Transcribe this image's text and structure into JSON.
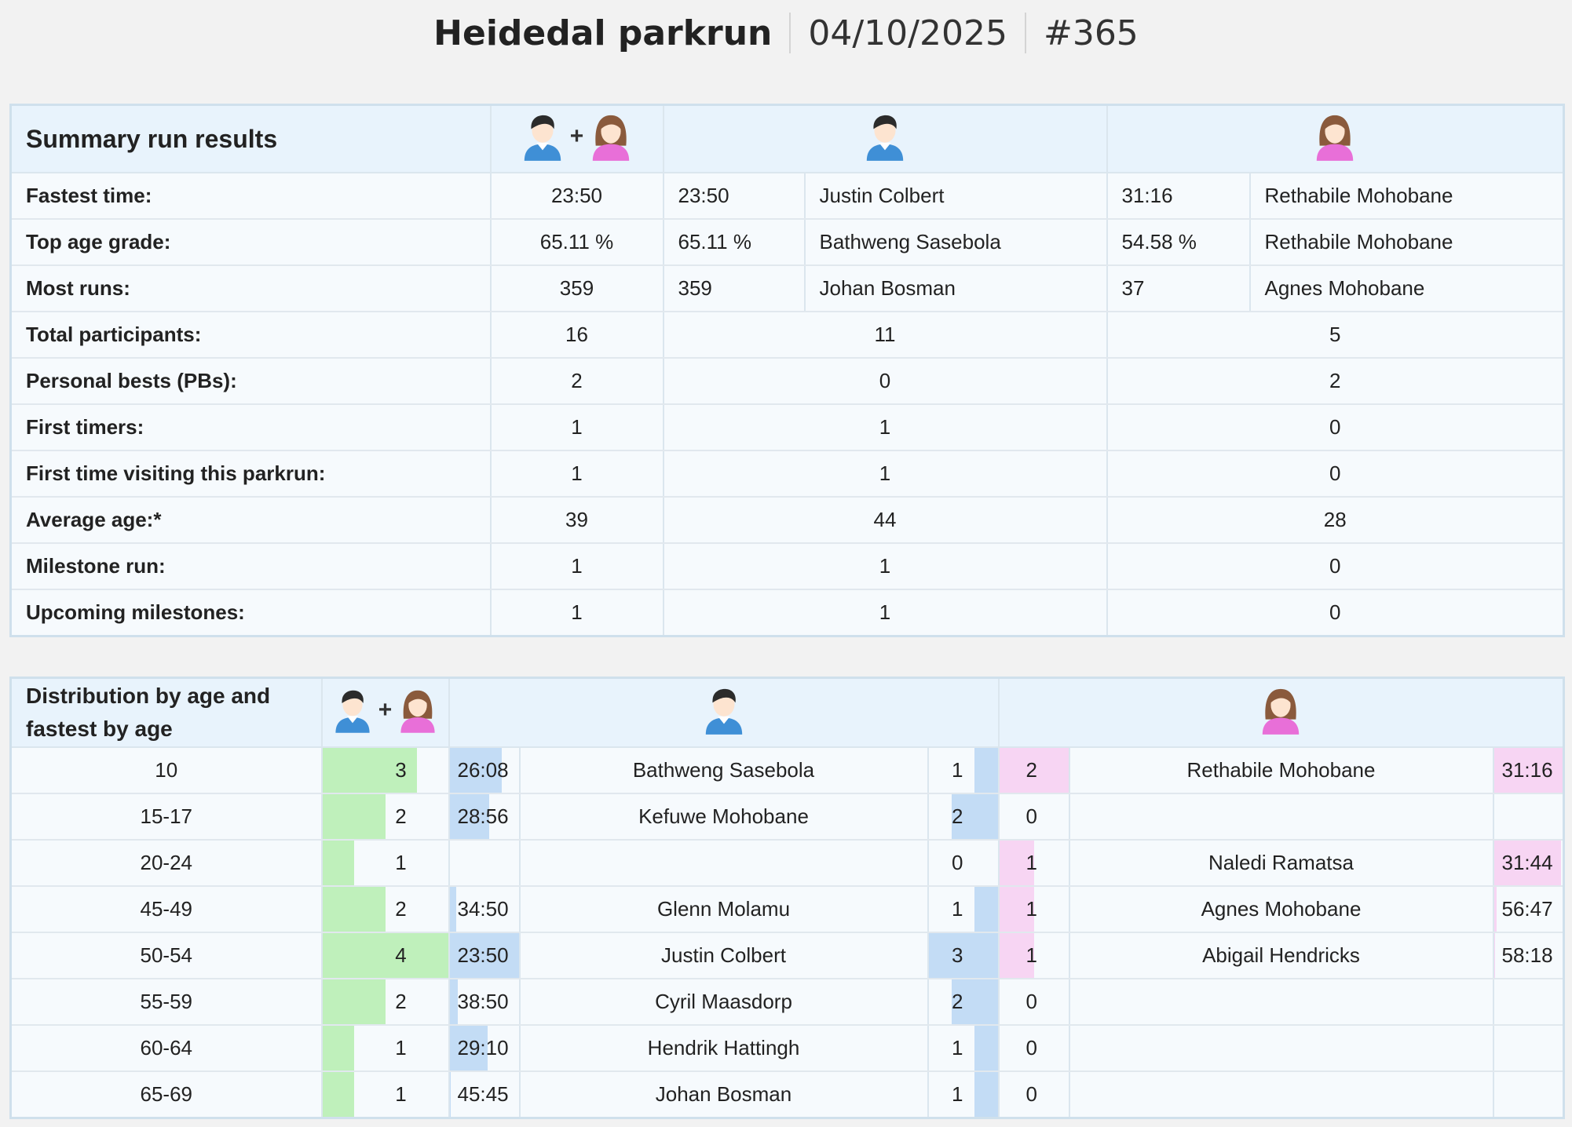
{
  "header": {
    "title": "Heidedal parkrun",
    "date": "04/10/2025",
    "event_number": "#365"
  },
  "icons": {
    "all": "male-female-icon",
    "male": "male-icon",
    "female": "female-icon",
    "plus": "+"
  },
  "colors": {
    "total_bar": "#bff0bb",
    "male_bar": "#c3dcf5",
    "female_bar": "#f7d5f3",
    "header_bg": "#e8f3fc"
  },
  "summary": {
    "title": "Summary run results",
    "rows": [
      {
        "label": "Fastest time:",
        "all": "23:50",
        "male_value": "23:50",
        "male_name": "Justin Colbert",
        "female_value": "31:16",
        "female_name": "Rethabile Mohobane"
      },
      {
        "label": "Top age grade:",
        "all": "65.11 %",
        "male_value": "65.11 %",
        "male_name": "Bathweng Sasebola",
        "female_value": "54.58 %",
        "female_name": "Rethabile Mohobane"
      },
      {
        "label": "Most runs:",
        "all": "359",
        "male_value": "359",
        "male_name": "Johan Bosman",
        "female_value": "37",
        "female_name": "Agnes Mohobane"
      },
      {
        "label": "Total participants:",
        "all": "16",
        "male": "11",
        "female": "5"
      },
      {
        "label": "Personal bests (PBs):",
        "all": "2",
        "male": "0",
        "female": "2"
      },
      {
        "label": "First timers:",
        "all": "1",
        "male": "1",
        "female": "0"
      },
      {
        "label": "First time visiting this parkrun:",
        "all": "1",
        "male": "1",
        "female": "0"
      },
      {
        "label": "Average age:*",
        "all": "39",
        "male": "44",
        "female": "28"
      },
      {
        "label": "Milestone run:",
        "all": "1",
        "male": "1",
        "female": "0"
      },
      {
        "label": "Upcoming milestones:",
        "all": "1",
        "male": "1",
        "female": "0"
      }
    ]
  },
  "distribution": {
    "title_line1": "Distribution by age and",
    "title_line2": "fastest by age",
    "rows": [
      {
        "age": "10",
        "total": "3",
        "male_time": "26:08",
        "male_name": "Bathweng Sasebola",
        "male_count": "1",
        "female_count": "2",
        "female_name": "Rethabile Mohobane",
        "female_time": "31:16"
      },
      {
        "age": "15-17",
        "total": "2",
        "male_time": "28:56",
        "male_name": "Kefuwe Mohobane",
        "male_count": "2",
        "female_count": "0",
        "female_name": "",
        "female_time": ""
      },
      {
        "age": "20-24",
        "total": "1",
        "male_time": "",
        "male_name": "",
        "male_count": "0",
        "female_count": "1",
        "female_name": "Naledi Ramatsa",
        "female_time": "31:44"
      },
      {
        "age": "45-49",
        "total": "2",
        "male_time": "34:50",
        "male_name": "Glenn Molamu",
        "male_count": "1",
        "female_count": "1",
        "female_name": "Agnes Mohobane",
        "female_time": "56:47"
      },
      {
        "age": "50-54",
        "total": "4",
        "male_time": "23:50",
        "male_name": "Justin Colbert",
        "male_count": "3",
        "female_count": "1",
        "female_name": "Abigail Hendricks",
        "female_time": "58:18"
      },
      {
        "age": "55-59",
        "total": "2",
        "male_time": "38:50",
        "male_name": "Cyril Maasdorp",
        "male_count": "2",
        "female_count": "0",
        "female_name": "",
        "female_time": ""
      },
      {
        "age": "60-64",
        "total": "1",
        "male_time": "29:10",
        "male_name": "Hendrik Hattingh",
        "male_count": "1",
        "female_count": "0",
        "female_name": "",
        "female_time": ""
      },
      {
        "age": "65-69",
        "total": "1",
        "male_time": "45:45",
        "male_name": "Johan Bosman",
        "male_count": "1",
        "female_count": "0",
        "female_name": "",
        "female_time": ""
      }
    ],
    "bar_levels": [
      {
        "total": 0.75,
        "male_time": 0.76,
        "male_count": 0.33,
        "female_count": 1.0,
        "female_time": 1.0
      },
      {
        "total": 0.5,
        "male_time": 0.57,
        "male_count": 0.67,
        "female_count": 0,
        "female_time": 0
      },
      {
        "total": 0.25,
        "male_time": 0,
        "male_count": 0,
        "female_count": 0.5,
        "female_time": 0.98
      },
      {
        "total": 0.5,
        "male_time": 0.1,
        "male_count": 0.33,
        "female_count": 0.5,
        "female_time": 0.04
      },
      {
        "total": 1.0,
        "male_time": 1.0,
        "male_count": 1.0,
        "female_count": 0.5,
        "female_time": 0.02
      },
      {
        "total": 0.5,
        "male_time": 0.12,
        "male_count": 0.67,
        "female_count": 0,
        "female_time": 0
      },
      {
        "total": 0.25,
        "male_time": 0.55,
        "male_count": 0.33,
        "female_count": 0,
        "female_time": 0
      },
      {
        "total": 0.25,
        "male_time": 0.02,
        "male_count": 0.33,
        "female_count": 0,
        "female_time": 0
      }
    ]
  }
}
